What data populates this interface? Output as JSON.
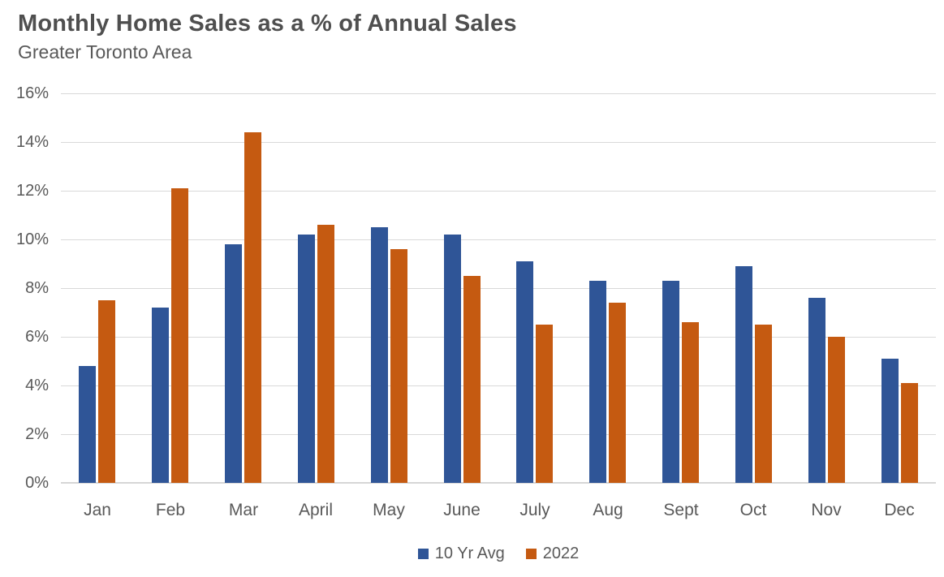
{
  "chart_data": {
    "type": "bar",
    "title": "Monthly Home Sales as a % of Annual Sales",
    "subtitle": "Greater Toronto Area",
    "categories": [
      "Jan",
      "Feb",
      "Mar",
      "April",
      "May",
      "June",
      "July",
      "Aug",
      "Sept",
      "Oct",
      "Nov",
      "Dec"
    ],
    "series": [
      {
        "name": "10 Yr Avg",
        "color": "#2F5597",
        "values": [
          4.8,
          7.2,
          9.8,
          10.2,
          10.5,
          10.2,
          9.1,
          8.3,
          8.3,
          8.9,
          7.6,
          5.1
        ]
      },
      {
        "name": "2022",
        "color": "#C55A11",
        "values": [
          7.5,
          12.1,
          14.4,
          10.6,
          9.6,
          8.5,
          6.5,
          7.4,
          6.6,
          6.5,
          6.0,
          4.1
        ]
      }
    ],
    "xlabel": "",
    "ylabel": "",
    "ylim": [
      0,
      16
    ],
    "ytick_step": 2,
    "yticks": [
      "0%",
      "2%",
      "4%",
      "6%",
      "8%",
      "10%",
      "12%",
      "14%",
      "16%"
    ],
    "grid": true,
    "legend_position": "bottom"
  },
  "colors": {
    "background": "#FFFFFF",
    "title_text": "#4F4F4F",
    "text": "#595959",
    "gridline": "#D9D9D9",
    "axis_line": "#D6D6D6",
    "series_blue": "#2F5597",
    "series_orange": "#C55A11"
  }
}
